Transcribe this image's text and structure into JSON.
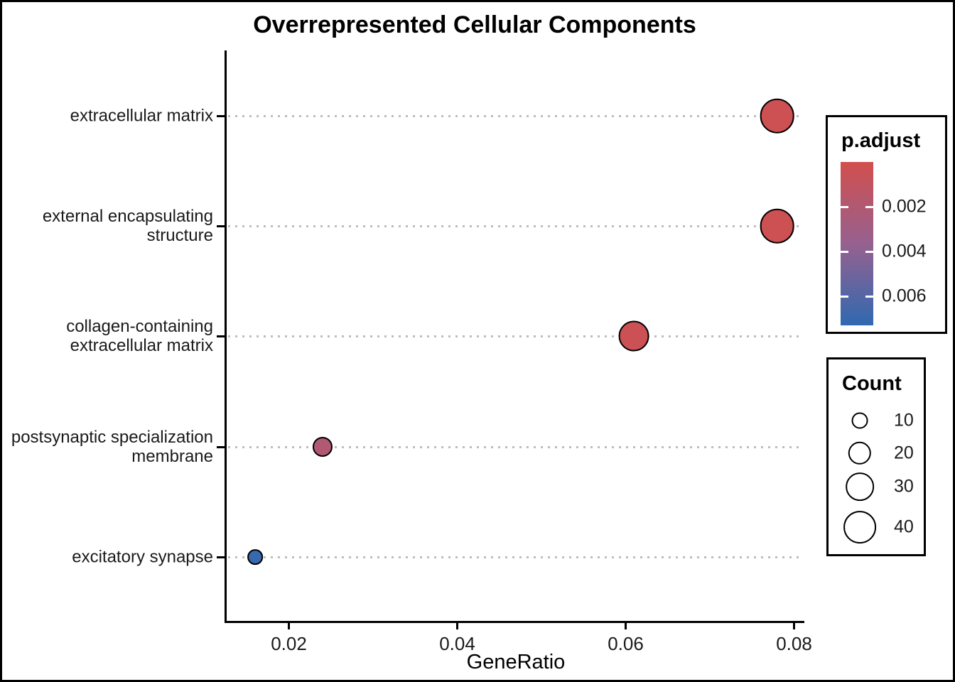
{
  "chart_data": {
    "type": "scatter",
    "title": "Overrepresented Cellular Components",
    "xlabel": "GeneRatio",
    "ylabel": "",
    "xlim": [
      0.0128,
      0.0815
    ],
    "x_ticks": [
      0.02,
      0.04,
      0.06,
      0.08
    ],
    "x_tick_labels": [
      "0.02",
      "0.04",
      "0.06",
      "0.08"
    ],
    "grid": "dotted horizontal major gridlines only",
    "categories": [
      "extracellular matrix",
      "external encapsulating structure",
      "collagen-containing extracellular matrix",
      "postsynaptic specialization membrane",
      "excitatory synapse"
    ],
    "category_label_lines": [
      [
        "extracellular matrix"
      ],
      [
        "external encapsulating",
        "structure"
      ],
      [
        "collagen-containing",
        "extracellular matrix"
      ],
      [
        "postsynaptic specialization",
        "membrane"
      ],
      [
        "excitatory synapse"
      ]
    ],
    "points": [
      {
        "category": "extracellular matrix",
        "gene_ratio": 0.078,
        "count": 45,
        "p_adjust": 0.0003
      },
      {
        "category": "external encapsulating structure",
        "gene_ratio": 0.078,
        "count": 45,
        "p_adjust": 0.0003
      },
      {
        "category": "collagen-containing extracellular matrix",
        "gene_ratio": 0.061,
        "count": 35,
        "p_adjust": 0.0004
      },
      {
        "category": "postsynaptic specialization membrane",
        "gene_ratio": 0.024,
        "count": 15,
        "p_adjust": 0.002
      },
      {
        "category": "excitatory synapse",
        "gene_ratio": 0.016,
        "count": 9,
        "p_adjust": 0.007
      }
    ],
    "legend_p_adjust": {
      "title": "p.adjust",
      "range": [
        0.0,
        0.0073
      ],
      "ticks": [
        0.002,
        0.004,
        0.006
      ],
      "tick_labels": [
        "0.002",
        "0.004",
        "0.006"
      ],
      "colors": {
        "low": "#D24F4E",
        "mid": "#96618F",
        "high": "#3069B1"
      }
    },
    "legend_count": {
      "title": "Count",
      "ticks": [
        10,
        20,
        30,
        40
      ],
      "tick_labels": [
        "10",
        "20",
        "30",
        "40"
      ]
    },
    "legend_position": "right"
  }
}
